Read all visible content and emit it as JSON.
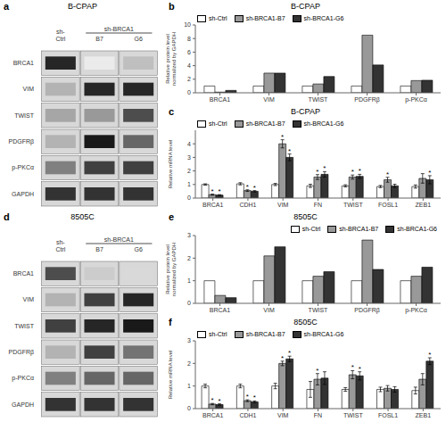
{
  "chart_data": [
    {
      "type": "heatmap",
      "panel_label": "a",
      "title": "B-CPAP",
      "columns": [
        "sh-\nCtrl",
        "B7",
        "G6"
      ],
      "rows": [
        "BRCA1",
        "VIM",
        "TWIST",
        "PDGFRβ",
        "p-PKCα",
        "GAPDH"
      ],
      "cells": [
        [
          0.85,
          0.08,
          0.25
        ],
        [
          0.3,
          0.85,
          0.85
        ],
        [
          0.35,
          0.4,
          0.7
        ],
        [
          0.3,
          0.9,
          0.6
        ],
        [
          0.5,
          0.75,
          0.75
        ],
        [
          0.8,
          0.8,
          0.8
        ]
      ],
      "annotations": [
        {
          "text": "sh-BRCA1",
          "columns": [
            "B7",
            "G6"
          ]
        }
      ]
    },
    {
      "type": "bar",
      "panel_label": "b",
      "title": "B-CPAP",
      "ylabel": "Relative protein level\nnormalized by GAPDH",
      "categories": [
        "BRCA1",
        "VIM",
        "TWIST",
        "PDGFRβ",
        "p-PKCα"
      ],
      "series": [
        {
          "name": "sh-Ctrl",
          "color": "#ffffff",
          "values": [
            1.0,
            1.0,
            1.0,
            1.0,
            1.0
          ]
        },
        {
          "name": "sh-BRCA1-B7",
          "color": "#999999",
          "values": [
            0.1,
            2.9,
            1.3,
            8.5,
            1.8
          ]
        },
        {
          "name": "sh-BRCA1-G6",
          "color": "#333333",
          "values": [
            0.35,
            2.9,
            2.4,
            4.1,
            1.85
          ]
        }
      ],
      "ylim": [
        0,
        10
      ],
      "yticks": [
        0,
        2,
        4,
        6,
        8,
        10
      ],
      "legend": "upper left"
    },
    {
      "type": "bar",
      "panel_label": "c",
      "title": "B-CPAP",
      "ylabel": "Relative mRNA level",
      "categories": [
        "BRCA1",
        "CDH1",
        "VIM",
        "FN",
        "TWIST",
        "FOSL1",
        "ZEB1"
      ],
      "series": [
        {
          "name": "sh-Ctrl",
          "color": "#ffffff",
          "values": [
            1.0,
            1.05,
            1.0,
            0.9,
            0.9,
            0.85,
            0.85
          ],
          "errors": [
            0.05,
            0.08,
            0.08,
            0.12,
            0.08,
            0.08,
            0.12
          ]
        },
        {
          "name": "sh-BRCA1-B7",
          "color": "#999999",
          "values": [
            0.25,
            0.55,
            4.0,
            1.55,
            1.55,
            1.35,
            1.45
          ],
          "errors": [
            0.04,
            0.06,
            0.3,
            0.18,
            0.15,
            0.18,
            0.35
          ],
          "point_labels": [
            "*",
            "*",
            "*",
            "*",
            "*",
            "*",
            null
          ]
        },
        {
          "name": "sh-BRCA1-G6",
          "color": "#333333",
          "values": [
            0.22,
            0.5,
            3.0,
            1.75,
            1.6,
            0.9,
            1.35
          ],
          "errors": [
            0.03,
            0.05,
            0.25,
            0.2,
            0.15,
            0.12,
            0.3
          ],
          "point_labels": [
            "*",
            "*",
            "*",
            "*",
            "*",
            null,
            "*"
          ]
        }
      ],
      "ylim": [
        0,
        5
      ],
      "yticks": [
        0,
        1,
        2,
        3,
        4
      ],
      "legend": "upper left"
    },
    {
      "type": "heatmap",
      "panel_label": "d",
      "title": "8505C",
      "columns": [
        "sh-\nCtrl",
        "B7",
        "G6"
      ],
      "rows": [
        "BRCA1",
        "VIM",
        "TWIST",
        "PDGFRβ",
        "p-PKCα",
        "GAPDH"
      ],
      "cells": [
        [
          0.7,
          0.2,
          0.15
        ],
        [
          0.3,
          0.75,
          0.85
        ],
        [
          0.75,
          0.85,
          0.9
        ],
        [
          0.3,
          0.75,
          0.55
        ],
        [
          0.5,
          0.6,
          0.6
        ],
        [
          0.8,
          0.8,
          0.8
        ]
      ],
      "annotations": [
        {
          "text": "sh-BRCA1",
          "columns": [
            "B7",
            "G6"
          ]
        }
      ]
    },
    {
      "type": "bar",
      "panel_label": "e",
      "title": "8505C",
      "ylabel": "Relative protein level\nnormalized by GAPDH",
      "categories": [
        "BRCA1",
        "VIM",
        "TWIST",
        "PDGFRβ",
        "p-PKCα"
      ],
      "series": [
        {
          "name": "sh-Ctrl",
          "color": "#ffffff",
          "values": [
            1.0,
            1.0,
            1.0,
            1.0,
            1.0
          ]
        },
        {
          "name": "sh-BRCA1-B7",
          "color": "#999999",
          "values": [
            0.35,
            2.1,
            1.2,
            2.8,
            1.2
          ]
        },
        {
          "name": "sh-BRCA1-G6",
          "color": "#333333",
          "values": [
            0.25,
            2.5,
            1.4,
            1.5,
            1.6
          ]
        }
      ],
      "ylim": [
        0,
        3
      ],
      "yticks": [
        0,
        1,
        2,
        3
      ],
      "legend": "upper right"
    },
    {
      "type": "bar",
      "panel_label": "f",
      "title": "8505C",
      "ylabel": "Relative mRNA level",
      "categories": [
        "BRCA1",
        "CDH1",
        "VIM",
        "FN",
        "TWIST",
        "FOSL1",
        "ZEB1"
      ],
      "series": [
        {
          "name": "sh-Ctrl",
          "color": "#ffffff",
          "values": [
            1.0,
            1.0,
            1.0,
            0.85,
            0.85,
            0.85,
            0.8
          ],
          "errors": [
            0.08,
            0.08,
            0.12,
            0.35,
            0.08,
            0.1,
            0.15
          ]
        },
        {
          "name": "sh-BRCA1-B7",
          "color": "#999999",
          "values": [
            0.2,
            0.35,
            2.0,
            1.3,
            1.5,
            0.9,
            1.3
          ],
          "errors": [
            0.03,
            0.04,
            0.1,
            0.25,
            0.18,
            0.12,
            0.25
          ],
          "point_labels": [
            "*",
            "*",
            "*",
            "*",
            "*",
            null,
            null
          ]
        },
        {
          "name": "sh-BRCA1-G6",
          "color": "#333333",
          "values": [
            0.18,
            0.3,
            2.2,
            1.35,
            1.45,
            0.85,
            2.1
          ],
          "errors": [
            0.03,
            0.04,
            0.12,
            0.28,
            0.18,
            0.12,
            0.15
          ],
          "point_labels": [
            "*",
            "*",
            "*",
            null,
            "*",
            null,
            "*"
          ]
        }
      ],
      "ylim": [
        0,
        3
      ],
      "yticks": [
        0,
        1,
        2,
        3
      ],
      "legend": "upper left"
    }
  ]
}
